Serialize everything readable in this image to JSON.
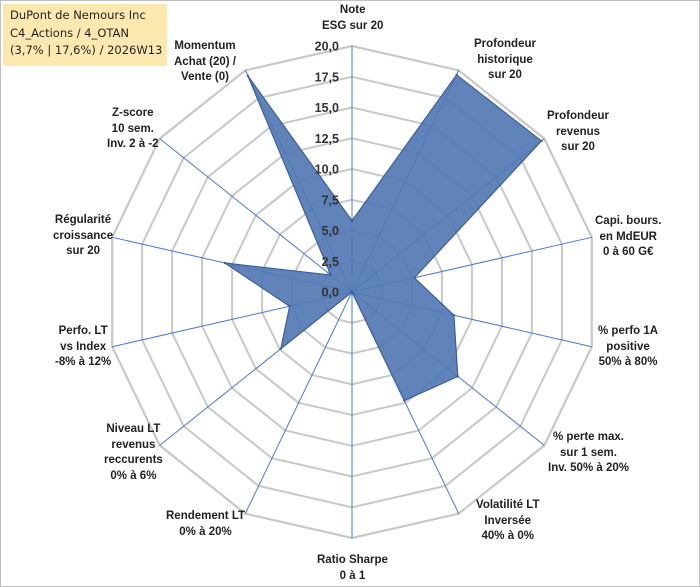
{
  "title": {
    "lines": [
      "DuPont de Nemours Inc",
      "C4_Actions / 4_OTAN",
      "(3,7% | 17,6%) / 2026W13"
    ]
  },
  "chart_data": {
    "type": "radar",
    "max": 20,
    "ticks": [
      "0,0",
      "2,5",
      "5,0",
      "7,5",
      "10,0",
      "12,5",
      "15,0",
      "17,5",
      "20,0"
    ],
    "axes": [
      {
        "lines": [
          "Note",
          "ESG sur 20"
        ]
      },
      {
        "lines": [
          "Profondeur",
          "historique",
          "sur 20"
        ]
      },
      {
        "lines": [
          "Profondeur",
          "revenus",
          "sur 20"
        ]
      },
      {
        "lines": [
          "Capi. bours.",
          "en MdEUR",
          "0 à 60 G€"
        ]
      },
      {
        "lines": [
          "% perfo 1A",
          "positive",
          "50% à 80%"
        ]
      },
      {
        "lines": [
          "% perte max.",
          "sur 1 sem.",
          "Inv. 50% à 20%"
        ]
      },
      {
        "lines": [
          "Volatilité LT",
          "Inversée",
          "40% à 0%"
        ]
      },
      {
        "lines": [
          "Ratio Sharpe",
          "0 à 1"
        ]
      },
      {
        "lines": [
          "Rendement LT",
          "0% à 20%"
        ]
      },
      {
        "lines": [
          "Niveau LT",
          "revenus",
          "reccurents",
          "0% à 6%"
        ]
      },
      {
        "lines": [
          "Perfo. LT",
          "vs Index",
          "-8% à 12%"
        ]
      },
      {
        "lines": [
          "Régularité",
          "croissance",
          "sur 20"
        ]
      },
      {
        "lines": [
          "Z-score",
          "10 sem.",
          "Inv. 2 à -2"
        ]
      },
      {
        "lines": [
          "Momentum",
          "Achat (20) /",
          "Vente (0)"
        ]
      }
    ],
    "series": [
      {
        "name": "DuPont de Nemours Inc",
        "values": [
          5.8,
          19.6,
          19.7,
          5.2,
          8.5,
          11.0,
          9.8,
          0.0,
          0.0,
          7.4,
          5.2,
          10.6,
          2.2,
          19.5
        ]
      }
    ],
    "colors": {
      "fill": "#4f77b2",
      "stroke": "#3d5f96",
      "grid": "#c8c8c8",
      "axis": "#4a79c7"
    }
  }
}
